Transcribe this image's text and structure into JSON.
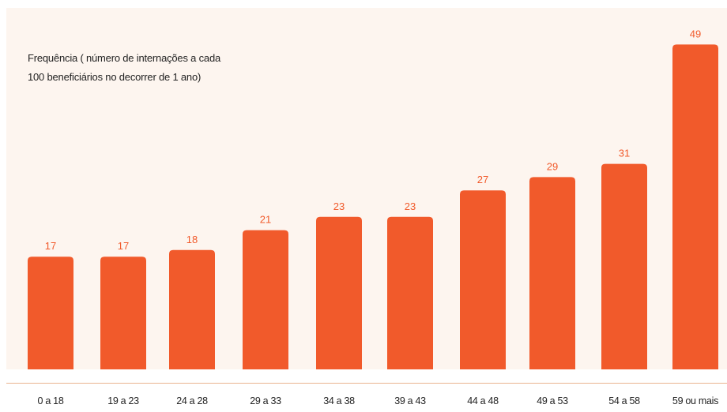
{
  "colors": {
    "bar": "#f15a2b",
    "value_label": "#f15a2b",
    "tick_label": "#222222",
    "plot_background": "#fdf5ef",
    "axis_line": "#e9b48f"
  },
  "chart_data": {
    "type": "bar",
    "title": "",
    "subtitle": "Frequência ( número de internações a cada\n100 beneficiários no decorrer de 1 ano)",
    "xlabel": "",
    "ylabel": "",
    "categories": [
      "0 a 18",
      "19 a 23",
      "24 a 28",
      "29 a 33",
      "34 a 38",
      "39 a 43",
      "44 a 48",
      "49 a 53",
      "54 a 58",
      "59 ou mais"
    ],
    "values": [
      17,
      17,
      18,
      21,
      23,
      23,
      27,
      29,
      31,
      49
    ],
    "ylim": [
      0,
      50
    ],
    "grid": false,
    "legend": "none"
  }
}
